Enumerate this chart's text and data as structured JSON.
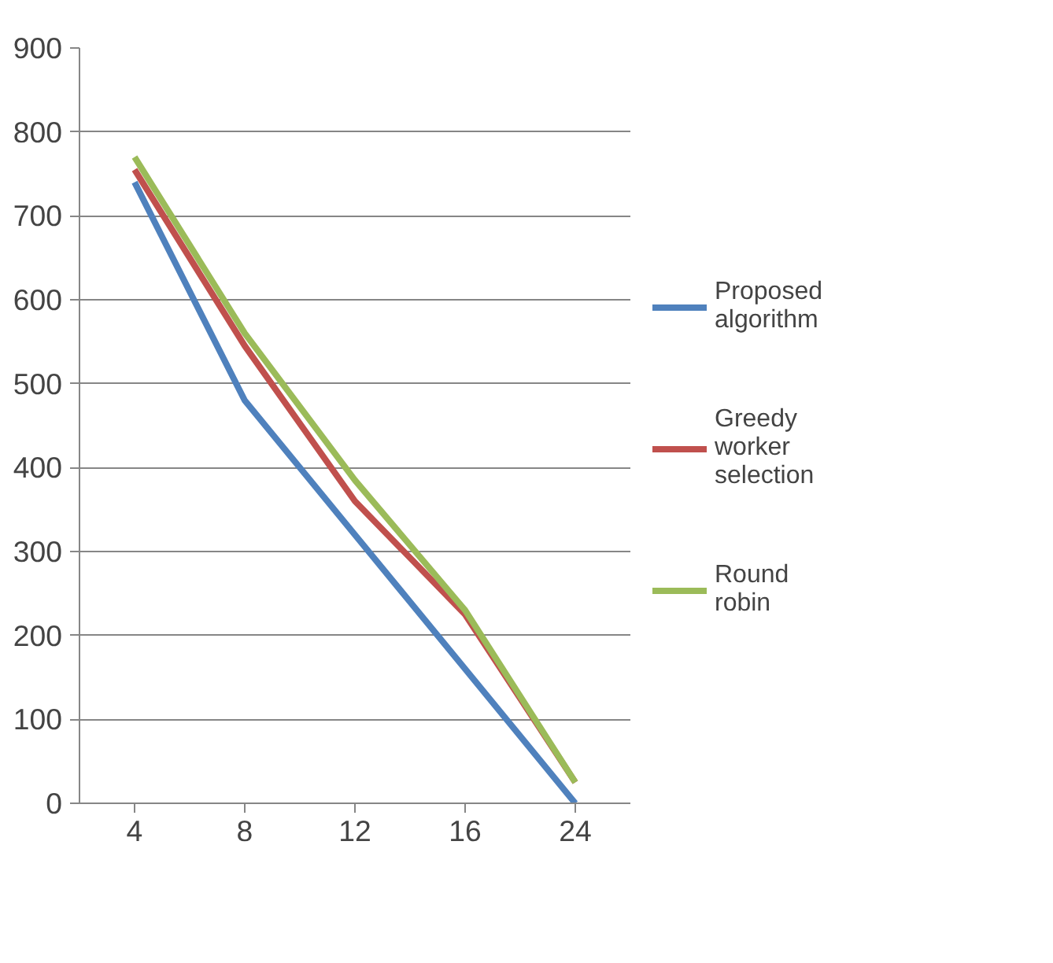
{
  "chart_data": {
    "type": "line",
    "categories": [
      "4",
      "8",
      "12",
      "16",
      "24"
    ],
    "series": [
      {
        "name": "Proposed algorithm",
        "color": "#4f81bd",
        "values": [
          740,
          480,
          320,
          160,
          0
        ]
      },
      {
        "name": "Greedy worker selection",
        "color": "#c0504d",
        "values": [
          755,
          545,
          360,
          225,
          25
        ]
      },
      {
        "name": "Round robin",
        "color": "#9bbb59",
        "values": [
          770,
          560,
          385,
          230,
          25
        ]
      }
    ],
    "ylim": [
      0,
      900
    ],
    "yticks": [
      0,
      100,
      200,
      300,
      400,
      500,
      600,
      700,
      800,
      900
    ],
    "grid": "y",
    "legend": "right",
    "marker": "none",
    "line_style": "solid"
  }
}
